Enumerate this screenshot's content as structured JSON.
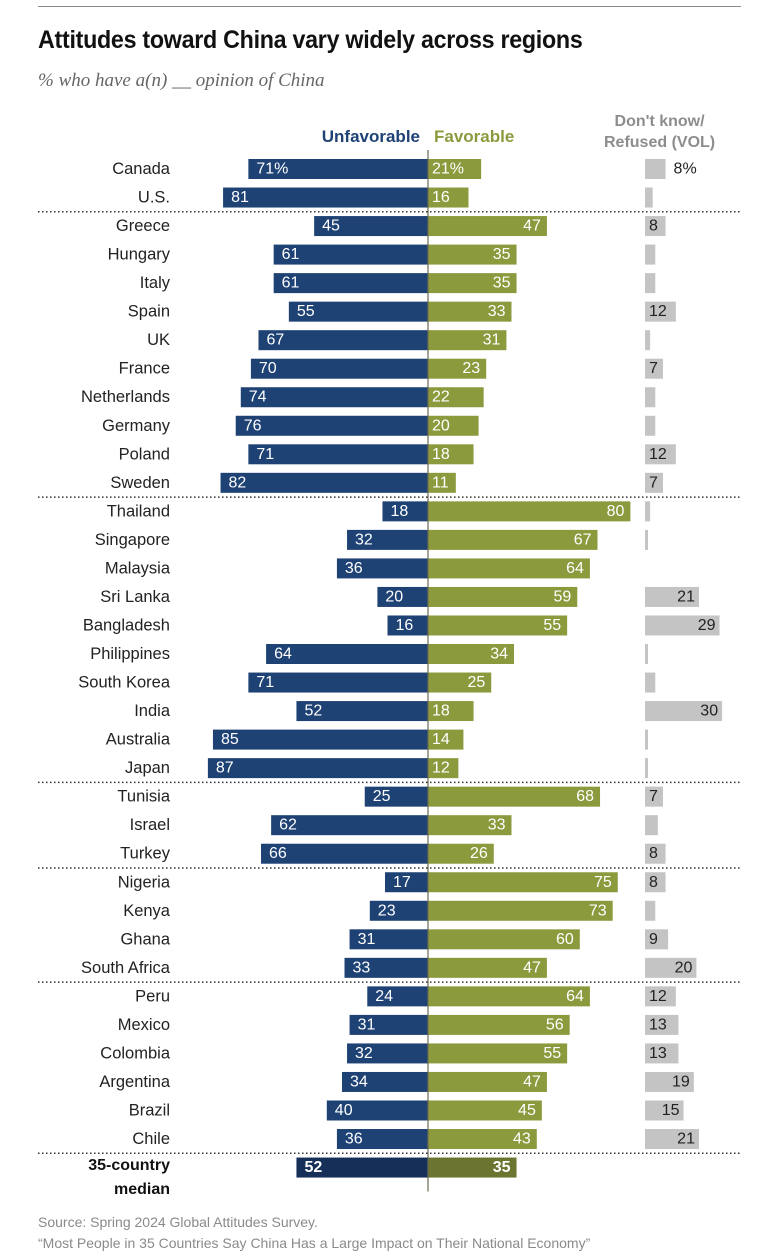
{
  "chart_data": {
    "type": "bar",
    "orientation": "horizontal-diverging",
    "title": "Attitudes toward China vary widely across regions",
    "subtitle": "% who have a(n) __ opinion of China",
    "series_names": {
      "unfavorable": "Unfavorable",
      "favorable": "Favorable",
      "dont_know": "Don't know/ Refused (VOL)"
    },
    "dk_header_lines": [
      "Don't know/",
      "Refused (VOL)"
    ],
    "colors": {
      "unfavorable": "#1f4275",
      "favorable": "#8c9a3e",
      "dont_know": "#c4c4c4",
      "median_unfavorable": "#152f58",
      "median_favorable": "#6b7530"
    },
    "xlim": [
      0,
      100
    ],
    "groups": [
      {
        "rows": [
          {
            "country": "Canada",
            "unfavorable": 71,
            "favorable": 21,
            "dont_know": 8,
            "unf_label": "71%",
            "fav_label": "21%",
            "dk_label": "8%"
          },
          {
            "country": "U.S.",
            "unfavorable": 81,
            "favorable": 16,
            "dont_know": 3,
            "unf_label": "81",
            "fav_label": "16",
            "dk_label": ""
          }
        ]
      },
      {
        "rows": [
          {
            "country": "Greece",
            "unfavorable": 45,
            "favorable": 47,
            "dont_know": 8,
            "unf_label": "45",
            "fav_label": "47",
            "dk_label": "8"
          },
          {
            "country": "Hungary",
            "unfavorable": 61,
            "favorable": 35,
            "dont_know": 4,
            "unf_label": "61",
            "fav_label": "35",
            "dk_label": ""
          },
          {
            "country": "Italy",
            "unfavorable": 61,
            "favorable": 35,
            "dont_know": 4,
            "unf_label": "61",
            "fav_label": "35",
            "dk_label": ""
          },
          {
            "country": "Spain",
            "unfavorable": 55,
            "favorable": 33,
            "dont_know": 12,
            "unf_label": "55",
            "fav_label": "33",
            "dk_label": "12"
          },
          {
            "country": "UK",
            "unfavorable": 67,
            "favorable": 31,
            "dont_know": 2,
            "unf_label": "67",
            "fav_label": "31",
            "dk_label": ""
          },
          {
            "country": "France",
            "unfavorable": 70,
            "favorable": 23,
            "dont_know": 7,
            "unf_label": "70",
            "fav_label": "23",
            "dk_label": "7"
          },
          {
            "country": "Netherlands",
            "unfavorable": 74,
            "favorable": 22,
            "dont_know": 4,
            "unf_label": "74",
            "fav_label": "22",
            "dk_label": ""
          },
          {
            "country": "Germany",
            "unfavorable": 76,
            "favorable": 20,
            "dont_know": 4,
            "unf_label": "76",
            "fav_label": "20",
            "dk_label": ""
          },
          {
            "country": "Poland",
            "unfavorable": 71,
            "favorable": 18,
            "dont_know": 12,
            "unf_label": "71",
            "fav_label": "18",
            "dk_label": "12"
          },
          {
            "country": "Sweden",
            "unfavorable": 82,
            "favorable": 11,
            "dont_know": 7,
            "unf_label": "82",
            "fav_label": "11",
            "dk_label": "7"
          }
        ]
      },
      {
        "rows": [
          {
            "country": "Thailand",
            "unfavorable": 18,
            "favorable": 80,
            "dont_know": 2,
            "unf_label": "18",
            "fav_label": "80",
            "dk_label": ""
          },
          {
            "country": "Singapore",
            "unfavorable": 32,
            "favorable": 67,
            "dont_know": 1,
            "unf_label": "32",
            "fav_label": "67",
            "dk_label": ""
          },
          {
            "country": "Malaysia",
            "unfavorable": 36,
            "favorable": 64,
            "dont_know": 0,
            "unf_label": "36",
            "fav_label": "64",
            "dk_label": ""
          },
          {
            "country": "Sri Lanka",
            "unfavorable": 20,
            "favorable": 59,
            "dont_know": 21,
            "unf_label": "20",
            "fav_label": "59",
            "dk_label": "21"
          },
          {
            "country": "Bangladesh",
            "unfavorable": 16,
            "favorable": 55,
            "dont_know": 29,
            "unf_label": "16",
            "fav_label": "55",
            "dk_label": "29"
          },
          {
            "country": "Philippines",
            "unfavorable": 64,
            "favorable": 34,
            "dont_know": 1,
            "unf_label": "64",
            "fav_label": "34",
            "dk_label": ""
          },
          {
            "country": "South Korea",
            "unfavorable": 71,
            "favorable": 25,
            "dont_know": 4,
            "unf_label": "71",
            "fav_label": "25",
            "dk_label": ""
          },
          {
            "country": "India",
            "unfavorable": 52,
            "favorable": 18,
            "dont_know": 30,
            "unf_label": "52",
            "fav_label": "18",
            "dk_label": "30"
          },
          {
            "country": "Australia",
            "unfavorable": 85,
            "favorable": 14,
            "dont_know": 1,
            "unf_label": "85",
            "fav_label": "14",
            "dk_label": ""
          },
          {
            "country": "Japan",
            "unfavorable": 87,
            "favorable": 12,
            "dont_know": 1,
            "unf_label": "87",
            "fav_label": "12",
            "dk_label": ""
          }
        ]
      },
      {
        "rows": [
          {
            "country": "Tunisia",
            "unfavorable": 25,
            "favorable": 68,
            "dont_know": 7,
            "unf_label": "25",
            "fav_label": "68",
            "dk_label": "7"
          },
          {
            "country": "Israel",
            "unfavorable": 62,
            "favorable": 33,
            "dont_know": 5,
            "unf_label": "62",
            "fav_label": "33",
            "dk_label": ""
          },
          {
            "country": "Turkey",
            "unfavorable": 66,
            "favorable": 26,
            "dont_know": 8,
            "unf_label": "66",
            "fav_label": "26",
            "dk_label": "8"
          }
        ]
      },
      {
        "rows": [
          {
            "country": "Nigeria",
            "unfavorable": 17,
            "favorable": 75,
            "dont_know": 8,
            "unf_label": "17",
            "fav_label": "75",
            "dk_label": "8"
          },
          {
            "country": "Kenya",
            "unfavorable": 23,
            "favorable": 73,
            "dont_know": 4,
            "unf_label": "23",
            "fav_label": "73",
            "dk_label": ""
          },
          {
            "country": "Ghana",
            "unfavorable": 31,
            "favorable": 60,
            "dont_know": 9,
            "unf_label": "31",
            "fav_label": "60",
            "dk_label": "9"
          },
          {
            "country": "South Africa",
            "unfavorable": 33,
            "favorable": 47,
            "dont_know": 20,
            "unf_label": "33",
            "fav_label": "47",
            "dk_label": "20"
          }
        ]
      },
      {
        "rows": [
          {
            "country": "Peru",
            "unfavorable": 24,
            "favorable": 64,
            "dont_know": 12,
            "unf_label": "24",
            "fav_label": "64",
            "dk_label": "12"
          },
          {
            "country": "Mexico",
            "unfavorable": 31,
            "favorable": 56,
            "dont_know": 13,
            "unf_label": "31",
            "fav_label": "56",
            "dk_label": "13"
          },
          {
            "country": "Colombia",
            "unfavorable": 32,
            "favorable": 55,
            "dont_know": 13,
            "unf_label": "32",
            "fav_label": "55",
            "dk_label": "13"
          },
          {
            "country": "Argentina",
            "unfavorable": 34,
            "favorable": 47,
            "dont_know": 19,
            "unf_label": "34",
            "fav_label": "47",
            "dk_label": "19"
          },
          {
            "country": "Brazil",
            "unfavorable": 40,
            "favorable": 45,
            "dont_know": 15,
            "unf_label": "40",
            "fav_label": "45",
            "dk_label": "15"
          },
          {
            "country": "Chile",
            "unfavorable": 36,
            "favorable": 43,
            "dont_know": 21,
            "unf_label": "36",
            "fav_label": "43",
            "dk_label": "21"
          }
        ]
      }
    ],
    "median": {
      "label_lines": [
        "35-country",
        "median"
      ],
      "unfavorable": 52,
      "favorable": 35,
      "unf_label": "52",
      "fav_label": "35"
    }
  },
  "footer": {
    "source": "Source: Spring 2024 Global Attitudes Survey.",
    "reference": "“Most People in 35 Countries Say China Has a Large Impact on Their National Economy”"
  }
}
